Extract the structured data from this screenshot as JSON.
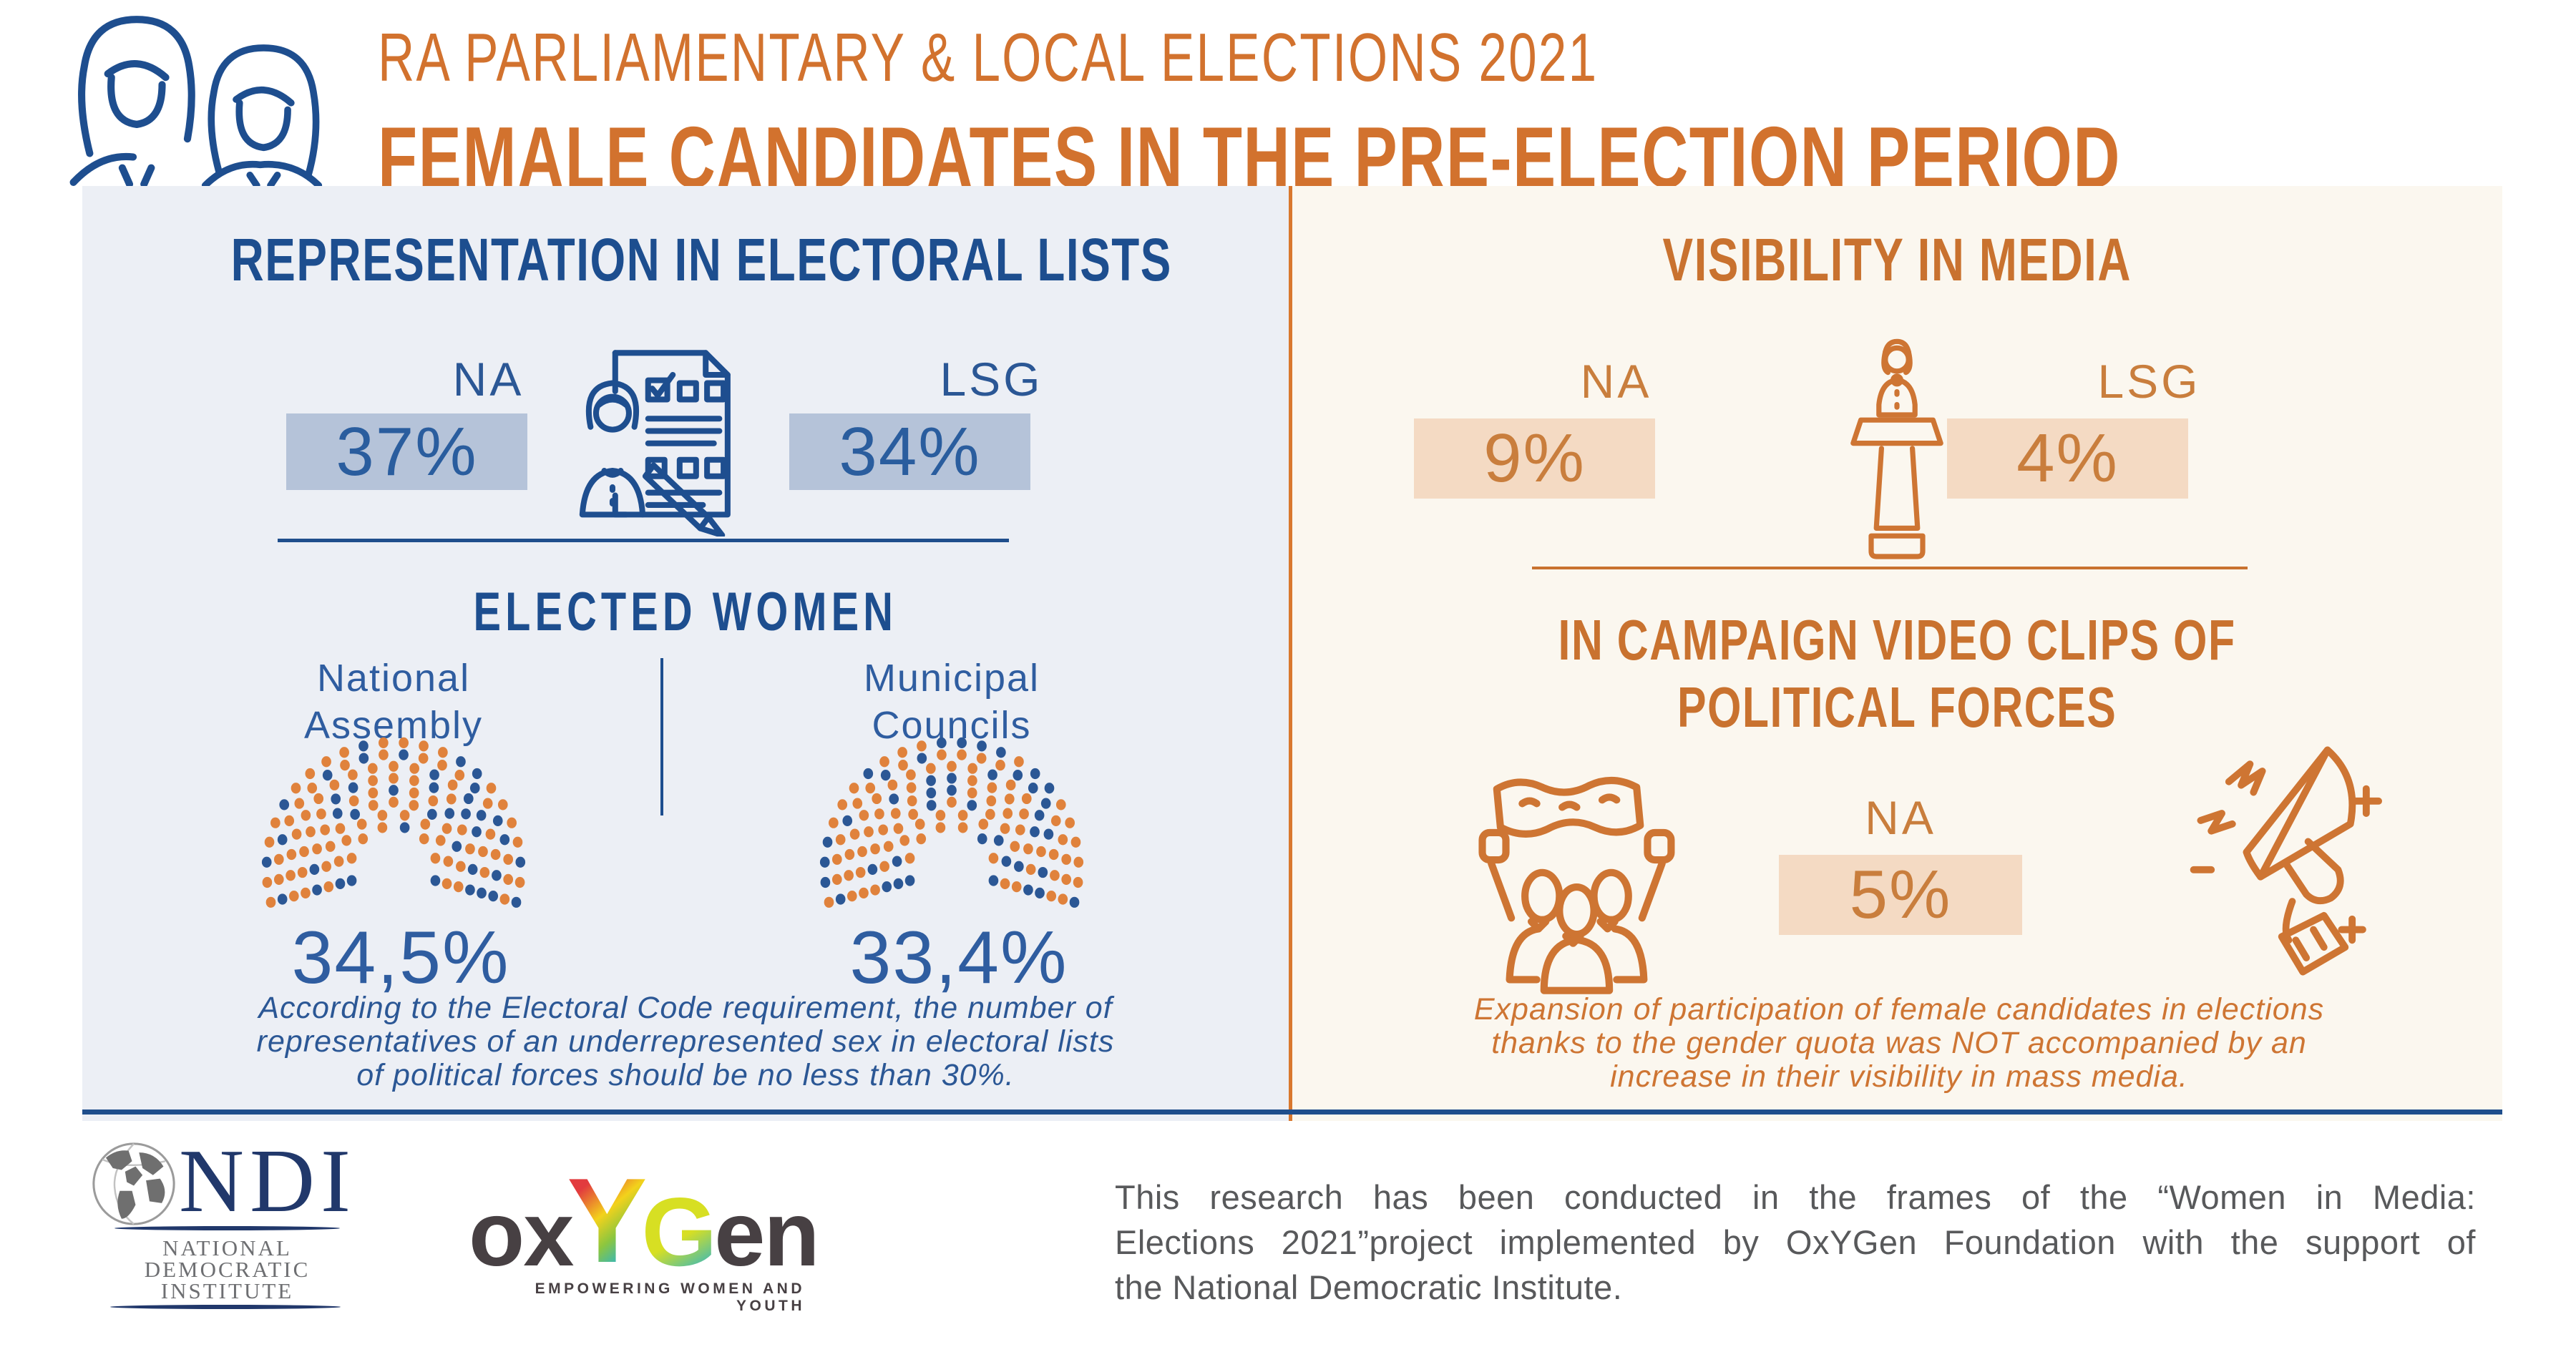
{
  "page_title": "RA Parliamentary & Local Elections 2021 — Female Candidates in the Pre-Election Period",
  "colors": {
    "accent_orange": "#D2722E",
    "accent_blue": "#1D4E8F",
    "panel_left_bg": "#ECEFF5",
    "panel_right_bg": "#FBF7EF",
    "box_blue": "#B5C3D9",
    "box_orange": "#F4DAC3",
    "dot_women": "#2B5795",
    "dot_men": "#E0823C",
    "footer_text": "#58595B"
  },
  "header": {
    "line1": "RA PARLIAMENTARY & LOCAL ELECTIONS 2021",
    "line2": "FEMALE CANDIDATES IN THE PRE-ELECTION PERIOD"
  },
  "left_panel": {
    "title": "REPRESENTATION IN ELECTORAL LISTS",
    "stats": [
      {
        "label": "NA",
        "value": "37%"
      },
      {
        "label": "LSG",
        "value": "34%"
      }
    ],
    "elected": {
      "title": "ELECTED WOMEN",
      "groups": [
        {
          "name_lines": [
            "National",
            "Assembly"
          ],
          "value": "34,5%"
        },
        {
          "name_lines": [
            "Municipal",
            "Councils"
          ],
          "value": "33,4%"
        }
      ]
    },
    "note_lines": [
      "According to the Electoral Code requirement, the number of",
      "representatives of an underrepresented sex in electoral lists",
      "of political forces should be no less than 30%."
    ]
  },
  "right_panel": {
    "title": "VISIBILITY IN MEDIA",
    "stats": [
      {
        "label": "NA",
        "value": "9%"
      },
      {
        "label": "LSG",
        "value": "4%"
      }
    ],
    "campaign": {
      "title_lines": [
        "IN CAMPAIGN VIDEO CLIPS OF",
        "POLITICAL FORCES"
      ],
      "stat": {
        "label": "NA",
        "value": "5%"
      }
    },
    "note_lines": [
      "Expansion of participation of female candidates in elections",
      "thanks to the gender quota was NOT accompanied by an",
      "increase in their visibility in mass media."
    ]
  },
  "footer": {
    "ndi": {
      "acronym": "NDI",
      "name_lines": [
        "NATIONAL",
        "DEMOCRATIC",
        "INSTITUTE"
      ]
    },
    "oxygen": {
      "word_ox": "ox",
      "word_y": "Y",
      "word_g": "G",
      "word_en": "en",
      "tagline": "EMPOWERING WOMEN AND YOUTH"
    },
    "text_lines": [
      "This research has been conducted in the frames of the “Women in Media:",
      "Elections 2021”project implemented by OxYGen Foundation with the support of",
      "the National Democratic Institute."
    ]
  },
  "chart_data": [
    {
      "type": "bar",
      "title": "Female candidates — representation in electoral lists",
      "categories": [
        "NA",
        "LSG"
      ],
      "values": [
        37,
        34
      ],
      "unit": "%"
    },
    {
      "type": "parliament",
      "title": "Elected women — National Assembly",
      "women_pct": 34.5,
      "men_pct": 65.5,
      "value_label": "34,5%",
      "seat_rows": 8,
      "seed": 7,
      "colors": {
        "women": "#2B5795",
        "men": "#E0823C"
      }
    },
    {
      "type": "parliament",
      "title": "Elected women — Municipal Councils",
      "women_pct": 33.4,
      "men_pct": 66.6,
      "value_label": "33,4%",
      "seat_rows": 8,
      "seed": 29,
      "colors": {
        "women": "#2B5795",
        "men": "#E0823C"
      }
    },
    {
      "type": "bar",
      "title": "Female candidates — visibility in media",
      "categories": [
        "NA",
        "LSG"
      ],
      "values": [
        9,
        4
      ],
      "unit": "%"
    },
    {
      "type": "bar",
      "title": "Female candidates — in campaign video clips of political forces",
      "categories": [
        "NA"
      ],
      "values": [
        5
      ],
      "unit": "%"
    }
  ]
}
